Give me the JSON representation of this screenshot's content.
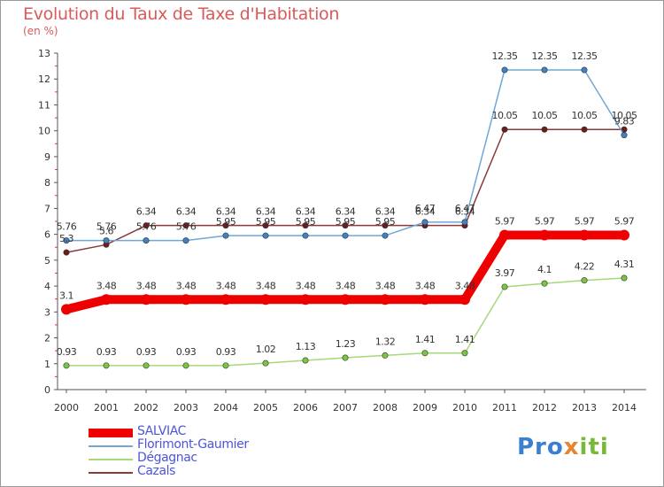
{
  "title": "Evolution du Taux de Taxe d'Habitation",
  "subtitle": "(en %)",
  "logo": {
    "text": "Proxiti",
    "colors": [
      "#3a7fd0",
      "#7ab83a",
      "#e7852d"
    ]
  },
  "chart_data": {
    "type": "line",
    "x": [
      "2000",
      "2001",
      "2002",
      "2003",
      "2004",
      "2005",
      "2006",
      "2007",
      "2008",
      "2009",
      "2010",
      "2011",
      "2012",
      "2013",
      "2014"
    ],
    "ylim": [
      0,
      13
    ],
    "yticks": [
      "0",
      "1",
      "2",
      "3",
      "4",
      "5",
      "6",
      "7",
      "8",
      "9",
      "10",
      "11",
      "12",
      "13"
    ],
    "grid": false,
    "legend_position": "bottom-left",
    "series": [
      {
        "name": "SALVIAC",
        "color": "#ee0000",
        "marker": "#ee0000",
        "values": [
          3.1,
          3.48,
          3.48,
          3.48,
          3.48,
          3.48,
          3.48,
          3.48,
          3.48,
          3.48,
          3.48,
          5.97,
          5.97,
          5.97,
          5.97
        ],
        "labels": [
          "3.1",
          "3.48",
          "3.48",
          "3.48",
          "3.48",
          "3.48",
          "3.48",
          "3.48",
          "3.48",
          "3.48",
          "3.48",
          "5.97",
          "5.97",
          "5.97",
          "5.97"
        ]
      },
      {
        "name": "Florimont-Gaumier",
        "color": "#6fa8d6",
        "marker": "#3f83c5",
        "values": [
          5.76,
          5.76,
          5.76,
          5.76,
          5.95,
          5.95,
          5.95,
          5.95,
          5.95,
          6.47,
          6.47,
          12.35,
          12.35,
          12.35,
          9.83
        ],
        "labels": [
          "5.76",
          "5.76",
          "5.76",
          "5.76",
          "5.95",
          "5.95",
          "5.95",
          "5.95",
          "5.95",
          "6.47",
          "6.47",
          "12.35",
          "12.35",
          "12.35",
          "9.83"
        ]
      },
      {
        "name": "Dégagnac",
        "color": "#a6d97a",
        "marker": "#7bc63e",
        "values": [
          0.93,
          0.93,
          0.93,
          0.93,
          0.93,
          1.02,
          1.13,
          1.23,
          1.32,
          1.41,
          1.41,
          3.97,
          4.1,
          4.22,
          4.31
        ],
        "labels": [
          "0.93",
          "0.93",
          "0.93",
          "0.93",
          "0.93",
          "1.02",
          "1.13",
          "1.23",
          "1.32",
          "1.41",
          "1.41",
          "3.97",
          "4.1",
          "4.22",
          "4.31"
        ]
      },
      {
        "name": "Cazals",
        "color": "#8a3a3a",
        "marker": "#6a1e1e",
        "values": [
          5.3,
          5.6,
          6.34,
          6.34,
          6.34,
          6.34,
          6.34,
          6.34,
          6.34,
          6.34,
          6.34,
          10.05,
          10.05,
          10.05,
          10.05
        ],
        "labels": [
          "5.3",
          "5.6",
          "6.34",
          "6.34",
          "6.34",
          "6.34",
          "6.34",
          "6.34",
          "6.34",
          "6.34",
          "6.34",
          "10.05",
          "10.05",
          "10.05",
          "10.05"
        ]
      }
    ]
  }
}
